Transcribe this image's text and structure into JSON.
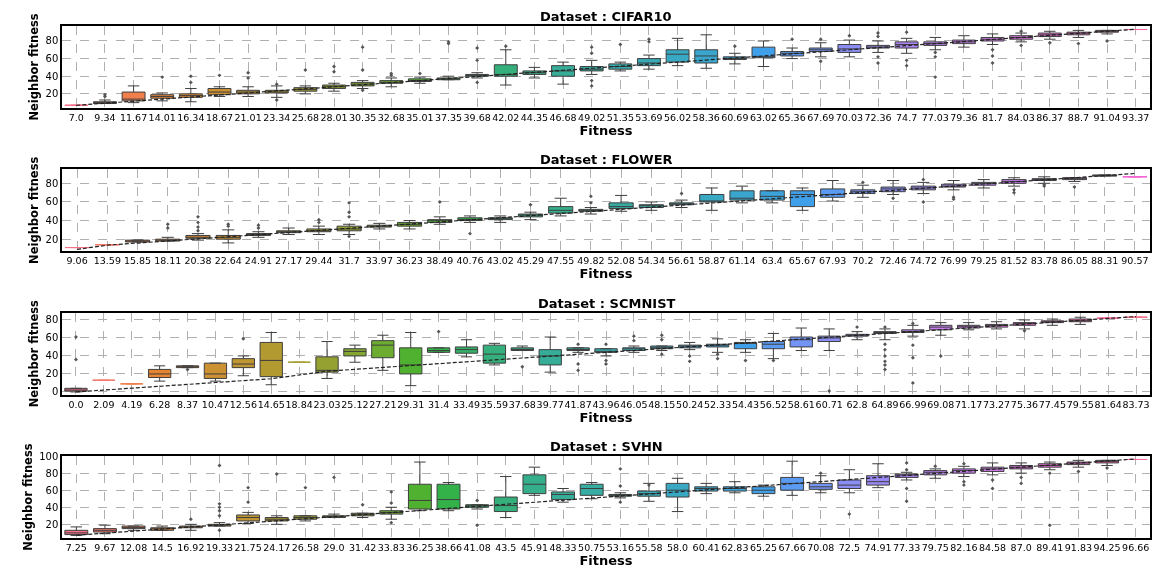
{
  "chart_data": [
    {
      "type": "box",
      "title": "Dataset : CIFAR10",
      "xlabel": "Fitness",
      "ylabel": "Neighbor fitness",
      "grid": true,
      "ylim": [
        4,
        97
      ],
      "yticks": [
        20,
        40,
        60,
        80
      ],
      "categories": [
        "7.0",
        "9.34",
        "11.67",
        "14.01",
        "16.34",
        "18.67",
        "21.01",
        "23.34",
        "25.68",
        "28.01",
        "30.35",
        "32.68",
        "35.01",
        "37.35",
        "39.68",
        "42.02",
        "44.35",
        "46.68",
        "49.02",
        "51.35",
        "53.69",
        "56.02",
        "58.36",
        "60.69",
        "63.02",
        "65.36",
        "67.69",
        "70.03",
        "72.36",
        "74.7",
        "77.03",
        "79.36",
        "81.7",
        "84.03",
        "86.37",
        "88.7",
        "91.04",
        "93.37"
      ],
      "colors": [
        "#f77189",
        "#f57a6b",
        "#ef7f4c",
        "#e68432",
        "#d98b32",
        "#cc9132",
        "#bf9632",
        "#b29a31",
        "#a49e31",
        "#95a231",
        "#83a731",
        "#6cac31",
        "#50b131",
        "#33b24a",
        "#34b067",
        "#35af7b",
        "#35ae8b",
        "#36ad98",
        "#36aca3",
        "#37abad",
        "#38aab7",
        "#39a8c2",
        "#3aa6cd",
        "#3ba3da",
        "#3f9fe8",
        "#5a9af0",
        "#7394f4",
        "#8a8ef4",
        "#9c88f4",
        "#ad84f4",
        "#bb83f4",
        "#c97ef3",
        "#d57af0",
        "#e173e6",
        "#ec6bda",
        "#f564d4",
        "#f668b8",
        "#f76ca0"
      ],
      "boxes": [
        {
          "low": 7,
          "q1": 7,
          "median": 7,
          "q3": 7,
          "high": 7
        },
        {
          "low": 9,
          "q1": 9,
          "median": 10,
          "q3": 11,
          "high": 13,
          "outliers": [
            17,
            19
          ]
        },
        {
          "low": 10,
          "q1": 12,
          "median": 14,
          "q3": 22,
          "high": 29
        },
        {
          "low": 12,
          "q1": 15,
          "median": 17,
          "q3": 19,
          "high": 21,
          "outliers": [
            39
          ]
        },
        {
          "low": 11,
          "q1": 16,
          "median": 18,
          "q3": 20,
          "high": 26,
          "outliers": [
            33,
            40
          ]
        },
        {
          "low": 17,
          "q1": 19,
          "median": 22,
          "q3": 26,
          "high": 28,
          "outliers": [
            41
          ]
        },
        {
          "low": 17,
          "q1": 20,
          "median": 22,
          "q3": 24,
          "high": 28,
          "outliers": [
            38,
            44
          ]
        },
        {
          "low": 16,
          "q1": 21,
          "median": 22,
          "q3": 24,
          "high": 29,
          "outliers": [
            13,
            31
          ]
        },
        {
          "low": 20,
          "q1": 23,
          "median": 25,
          "q3": 27,
          "high": 29,
          "outliers": [
            47
          ]
        },
        {
          "low": 23,
          "q1": 26,
          "median": 28,
          "q3": 30,
          "high": 32,
          "outliers": [
            45,
            51
          ]
        },
        {
          "low": 26,
          "q1": 29,
          "median": 31,
          "q3": 33,
          "high": 35,
          "outliers": [
            24,
            47,
            73
          ]
        },
        {
          "low": 28,
          "q1": 32,
          "median": 33,
          "q3": 35,
          "high": 38,
          "outliers": [
            41,
            43
          ]
        },
        {
          "low": 32,
          "q1": 34,
          "median": 35,
          "q3": 37,
          "high": 39,
          "outliers": [
            43
          ]
        },
        {
          "low": 36,
          "q1": 36,
          "median": 37,
          "q3": 38,
          "high": 40,
          "outliers": [
            77,
            79
          ]
        },
        {
          "low": 38,
          "q1": 40,
          "median": 41,
          "q3": 42,
          "high": 44,
          "outliers": [
            33,
            58,
            72
          ]
        },
        {
          "low": 30,
          "q1": 40,
          "median": 42,
          "q3": 53,
          "high": 70,
          "outliers": [
            74
          ]
        },
        {
          "low": 38,
          "q1": 42,
          "median": 44,
          "q3": 46,
          "high": 50
        },
        {
          "low": 31,
          "q1": 40,
          "median": 46,
          "q3": 52,
          "high": 56
        },
        {
          "low": 42,
          "q1": 46,
          "median": 48,
          "q3": 51,
          "high": 58,
          "outliers": [
            29,
            35,
            66,
            73
          ]
        },
        {
          "low": 46,
          "q1": 48,
          "median": 51,
          "q3": 54,
          "high": 56,
          "outliers": [
            76
          ]
        },
        {
          "low": 48,
          "q1": 52,
          "median": 55,
          "q3": 60,
          "high": 64,
          "outliers": [
            79,
            82
          ]
        },
        {
          "low": 52,
          "q1": 56,
          "median": 65,
          "q3": 70,
          "high": 83
        },
        {
          "low": 49,
          "q1": 55,
          "median": 63,
          "q3": 70,
          "high": 87
        },
        {
          "low": 54,
          "q1": 59,
          "median": 60,
          "q3": 62,
          "high": 66,
          "outliers": [
            74
          ]
        },
        {
          "low": 51,
          "q1": 61,
          "median": 62,
          "q3": 73,
          "high": 80
        },
        {
          "low": 60,
          "q1": 63,
          "median": 66,
          "q3": 68,
          "high": 72,
          "outliers": [
            82
          ]
        },
        {
          "low": 62,
          "q1": 68,
          "median": 70,
          "q3": 72,
          "high": 78,
          "outliers": [
            57,
            82
          ]
        },
        {
          "low": 62,
          "q1": 67,
          "median": 71,
          "q3": 76,
          "high": 81,
          "outliers": [
            86
          ]
        },
        {
          "low": 67,
          "q1": 72,
          "median": 73,
          "q3": 75,
          "high": 80,
          "outliers": [
            55,
            62,
            85,
            89
          ]
        },
        {
          "low": 66,
          "q1": 72,
          "median": 76,
          "q3": 79,
          "high": 83,
          "outliers": [
            52,
            58,
            90
          ]
        },
        {
          "low": 70,
          "q1": 75,
          "median": 77,
          "q3": 79,
          "high": 84,
          "outliers": [
            39,
            62,
            67
          ]
        },
        {
          "low": 73,
          "q1": 77,
          "median": 79,
          "q3": 81,
          "high": 86
        },
        {
          "low": 76,
          "q1": 80,
          "median": 82,
          "q3": 84,
          "high": 88,
          "outliers": [
            55,
            63,
            70
          ]
        },
        {
          "low": 79,
          "q1": 82,
          "median": 84,
          "q3": 86,
          "high": 89,
          "outliers": [
            75,
            91
          ]
        },
        {
          "low": 82,
          "q1": 85,
          "median": 87,
          "q3": 89,
          "high": 91,
          "outliers": [
            78
          ]
        },
        {
          "low": 84,
          "q1": 87,
          "median": 89,
          "q3": 90,
          "high": 92,
          "outliers": [
            77
          ]
        },
        {
          "low": 88,
          "q1": 90,
          "median": 91,
          "q3": 92,
          "high": 92,
          "outliers": [
            80
          ]
        },
        {
          "low": 93,
          "q1": 93,
          "median": 93,
          "q3": 93,
          "high": 93
        }
      ],
      "series": [
        {
          "type": "line",
          "color": "#222222",
          "line_style": "dashed",
          "values": [
            7.0,
            9.34,
            11.67,
            14.01,
            16.34,
            18.67,
            21.01,
            23.34,
            25.68,
            28.01,
            30.35,
            32.68,
            35.01,
            37.35,
            39.68,
            42.02,
            44.35,
            46.68,
            49.02,
            51.35,
            53.69,
            56.02,
            58.36,
            60.69,
            63.02,
            65.36,
            67.69,
            70.03,
            72.36,
            74.7,
            77.03,
            79.36,
            81.7,
            84.03,
            86.37,
            88.7,
            91.04,
            93.37
          ]
        }
      ]
    },
    {
      "type": "box",
      "title": "Dataset : FLOWER",
      "xlabel": "Fitness",
      "ylabel": "Neighbor fitness",
      "grid": true,
      "ylim": [
        7,
        95
      ],
      "yticks": [
        20,
        40,
        60,
        80
      ],
      "categories": [
        "9.06",
        "13.59",
        "15.85",
        "18.11",
        "20.38",
        "22.64",
        "24.91",
        "27.17",
        "29.44",
        "31.7",
        "33.97",
        "36.23",
        "38.49",
        "40.76",
        "43.02",
        "45.29",
        "47.55",
        "49.82",
        "52.08",
        "54.34",
        "56.61",
        "58.87",
        "61.14",
        "63.4",
        "65.67",
        "67.93",
        "70.2",
        "72.46",
        "74.72",
        "76.99",
        "79.25",
        "81.52",
        "83.78",
        "86.05",
        "88.31",
        "90.57"
      ],
      "colors": [
        "#f77189",
        "#f57a6b",
        "#ef7f4c",
        "#e68432",
        "#d98b32",
        "#cc9132",
        "#bf9632",
        "#b29a31",
        "#a49e31",
        "#95a231",
        "#83a731",
        "#6cac31",
        "#50b131",
        "#33b24a",
        "#34b067",
        "#35af7b",
        "#35ae8b",
        "#36ad98",
        "#36aca3",
        "#37abad",
        "#38aab7",
        "#39a8c2",
        "#3aa6cd",
        "#3ba3da",
        "#3f9fe8",
        "#5a9af0",
        "#7394f4",
        "#8a8ef4",
        "#9c88f4",
        "#ad84f4",
        "#bb83f4",
        "#c97ef3",
        "#d57af0",
        "#e173e6",
        "#ec6bda",
        "#f564d4"
      ],
      "boxes": [
        {
          "low": 11,
          "q1": 11,
          "median": 11,
          "q3": 11,
          "high": 11
        },
        {
          "low": 14,
          "q1": 14,
          "median": 14,
          "q3": 14,
          "high": 14
        },
        {
          "low": 17,
          "q1": 17,
          "median": 18,
          "q3": 19,
          "high": 19
        },
        {
          "low": 18,
          "q1": 18,
          "median": 19,
          "q3": 20,
          "high": 22,
          "outliers": [
            32,
            36
          ]
        },
        {
          "low": 19,
          "q1": 21,
          "median": 22,
          "q3": 24,
          "high": 26,
          "outliers": [
            29,
            33,
            38,
            44
          ]
        },
        {
          "low": 16,
          "q1": 20,
          "median": 22,
          "q3": 24,
          "high": 30,
          "outliers": [
            34,
            36
          ]
        },
        {
          "low": 22,
          "q1": 24,
          "median": 25,
          "q3": 26,
          "high": 28,
          "outliers": [
            32,
            35
          ]
        },
        {
          "low": 25,
          "q1": 27,
          "median": 28,
          "q3": 29,
          "high": 32
        },
        {
          "low": 25,
          "q1": 28,
          "median": 29,
          "q3": 31,
          "high": 34,
          "outliers": [
            38,
            41
          ]
        },
        {
          "low": 25,
          "q1": 29,
          "median": 31,
          "q3": 34,
          "high": 36,
          "outliers": [
            23,
            44,
            49,
            59
          ]
        },
        {
          "low": 31,
          "q1": 33,
          "median": 34,
          "q3": 35,
          "high": 37
        },
        {
          "low": 31,
          "q1": 34,
          "median": 36,
          "q3": 38,
          "high": 40
        },
        {
          "low": 36,
          "q1": 38,
          "median": 40,
          "q3": 41,
          "high": 44,
          "outliers": [
            60
          ]
        },
        {
          "low": 38,
          "q1": 40,
          "median": 41,
          "q3": 43,
          "high": 45,
          "outliers": [
            26
          ]
        },
        {
          "low": 38,
          "q1": 41,
          "median": 42,
          "q3": 43,
          "high": 45
        },
        {
          "low": 41,
          "q1": 44,
          "median": 46,
          "q3": 47,
          "high": 49,
          "outliers": [
            57
          ]
        },
        {
          "low": 45,
          "q1": 48,
          "median": 51,
          "q3": 55,
          "high": 64
        },
        {
          "low": 47,
          "q1": 50,
          "median": 51,
          "q3": 52,
          "high": 54,
          "outliers": [
            59,
            66
          ]
        },
        {
          "low": 50,
          "q1": 53,
          "median": 55,
          "q3": 59,
          "high": 67
        },
        {
          "low": 51,
          "q1": 54,
          "median": 56,
          "q3": 57,
          "high": 60
        },
        {
          "low": 54,
          "q1": 57,
          "median": 58,
          "q3": 59,
          "high": 62,
          "outliers": [
            69
          ]
        },
        {
          "low": 51,
          "q1": 60,
          "median": 61,
          "q3": 68,
          "high": 75
        },
        {
          "low": 59,
          "q1": 62,
          "median": 64,
          "q3": 72,
          "high": 77
        },
        {
          "low": 59,
          "q1": 62,
          "median": 66,
          "q3": 72,
          "high": 72
        },
        {
          "low": 51,
          "q1": 55,
          "median": 68,
          "q3": 72,
          "high": 75
        },
        {
          "low": 61,
          "q1": 65,
          "median": 68,
          "q3": 74,
          "high": 83
        },
        {
          "low": 65,
          "q1": 69,
          "median": 71,
          "q3": 73,
          "high": 78,
          "outliers": [
            81
          ]
        },
        {
          "low": 68,
          "q1": 71,
          "median": 74,
          "q3": 76,
          "high": 83,
          "outliers": [
            64
          ]
        },
        {
          "low": 69,
          "q1": 73,
          "median": 75,
          "q3": 77,
          "high": 81,
          "outliers": [
            60,
            84
          ]
        },
        {
          "low": 73,
          "q1": 76,
          "median": 77,
          "q3": 79,
          "high": 83,
          "outliers": [
            63,
            65
          ]
        },
        {
          "low": 75,
          "q1": 78,
          "median": 80,
          "q3": 81,
          "high": 84
        },
        {
          "low": 77,
          "q1": 80,
          "median": 82,
          "q3": 84,
          "high": 86,
          "outliers": [
            70,
            73
          ]
        },
        {
          "low": 80,
          "q1": 83,
          "median": 84,
          "q3": 85,
          "high": 87,
          "outliers": [
            77,
            79
          ]
        },
        {
          "low": 82,
          "q1": 84,
          "median": 85,
          "q3": 86,
          "high": 86,
          "outliers": [
            76
          ]
        },
        {
          "low": 88,
          "q1": 88,
          "median": 88,
          "q3": 89,
          "high": 89
        },
        {
          "low": 87,
          "q1": 87,
          "median": 87,
          "q3": 87,
          "high": 87
        }
      ],
      "series": [
        {
          "type": "line",
          "color": "#222222",
          "line_style": "dashed",
          "values": [
            9.06,
            13.59,
            15.85,
            18.11,
            20.38,
            22.64,
            24.91,
            27.17,
            29.44,
            31.7,
            33.97,
            36.23,
            38.49,
            40.76,
            43.02,
            45.29,
            47.55,
            49.82,
            52.08,
            54.34,
            56.61,
            58.87,
            61.14,
            63.4,
            65.67,
            67.93,
            70.2,
            72.46,
            74.72,
            76.99,
            79.25,
            81.52,
            83.78,
            86.05,
            88.31,
            90.57
          ]
        }
      ]
    },
    {
      "type": "box",
      "title": "Dataset : SCMNIST",
      "xlabel": "Fitness",
      "ylabel": "Neighbor fitness",
      "grid": true,
      "ylim": [
        -3,
        88
      ],
      "yticks": [
        0,
        20,
        40,
        60,
        80
      ],
      "categories": [
        "0.0",
        "2.09",
        "4.19",
        "6.28",
        "8.37",
        "10.47",
        "12.56",
        "14.65",
        "18.84",
        "23.03",
        "25.12",
        "27.21",
        "29.31",
        "31.4",
        "33.49",
        "35.59",
        "37.68",
        "39.77",
        "41.87",
        "43.96",
        "46.05",
        "48.15",
        "50.24",
        "52.33",
        "54.43",
        "56.52",
        "58.61",
        "60.71",
        "62.8",
        "64.89",
        "66.99",
        "69.08",
        "71.17",
        "73.27",
        "75.36",
        "77.45",
        "79.55",
        "81.64",
        "83.73"
      ],
      "colors": [
        "#f77189",
        "#f57a6b",
        "#ef7f4c",
        "#e68432",
        "#d98b32",
        "#cc9132",
        "#bf9632",
        "#b29a31",
        "#a49e31",
        "#95a231",
        "#83a731",
        "#6cac31",
        "#50b131",
        "#33b24a",
        "#34b067",
        "#35af7b",
        "#35ae8b",
        "#36ad98",
        "#36aca3",
        "#37abad",
        "#38aab7",
        "#39a8c2",
        "#3aa6cd",
        "#3ba3da",
        "#3f9fe8",
        "#5a9af0",
        "#7394f4",
        "#8a8ef4",
        "#9c88f4",
        "#ad84f4",
        "#bb83f4",
        "#c97ef3",
        "#d57af0",
        "#e173e6",
        "#ec6bda",
        "#f564d4",
        "#f668b8",
        "#f76ca0",
        "#f77189"
      ],
      "boxes": [
        {
          "low": 0,
          "q1": 1,
          "median": 2,
          "q3": 4,
          "high": 4,
          "outliers": [
            36,
            61
          ]
        },
        {
          "low": 13,
          "q1": 13,
          "median": 13,
          "q3": 13,
          "high": 13
        },
        {
          "low": 9,
          "q1": 9,
          "median": 9,
          "q3": 9,
          "high": 9
        },
        {
          "low": 12,
          "q1": 16,
          "median": 20,
          "q3": 25,
          "high": 29
        },
        {
          "low": 27,
          "q1": 27,
          "median": 28,
          "q3": 29,
          "high": 29,
          "outliers": [
            25
          ]
        },
        {
          "low": 12,
          "q1": 15,
          "median": 20,
          "q3": 32,
          "high": 32
        },
        {
          "low": 18,
          "q1": 27,
          "median": 31,
          "q3": 37,
          "high": 40,
          "outliers": [
            59
          ]
        },
        {
          "low": 8,
          "q1": 17,
          "median": 35,
          "q3": 55,
          "high": 66
        },
        {
          "low": 33,
          "q1": 33,
          "median": 33,
          "q3": 33,
          "high": 33
        },
        {
          "low": 15,
          "q1": 22,
          "median": 24,
          "q3": 39,
          "high": 56
        },
        {
          "low": 33,
          "q1": 40,
          "median": 45,
          "q3": 48,
          "high": 52
        },
        {
          "low": 24,
          "q1": 38,
          "median": 52,
          "q3": 57,
          "high": 63
        },
        {
          "low": 7,
          "q1": 20,
          "median": 30,
          "q3": 49,
          "high": 66
        },
        {
          "low": 44,
          "q1": 44,
          "median": 46,
          "q3": 49,
          "high": 49,
          "outliers": [
            67
          ]
        },
        {
          "low": 39,
          "q1": 43,
          "median": 47,
          "q3": 50,
          "high": 58
        },
        {
          "low": 30,
          "q1": 32,
          "median": 42,
          "q3": 52,
          "high": 54
        },
        {
          "low": 46,
          "q1": 46,
          "median": 47,
          "q3": 49,
          "high": 51,
          "outliers": [
            28
          ]
        },
        {
          "low": 22,
          "q1": 30,
          "median": 40,
          "q3": 47,
          "high": 61
        },
        {
          "low": 44,
          "q1": 46,
          "median": 47,
          "q3": 49,
          "high": 49,
          "outliers": [
            24,
            31,
            53
          ]
        },
        {
          "low": 40,
          "q1": 44,
          "median": 45,
          "q3": 48,
          "high": 48,
          "outliers": [
            31,
            35,
            53
          ]
        },
        {
          "low": 44,
          "q1": 46,
          "median": 48,
          "q3": 49,
          "high": 51,
          "outliers": [
            57,
            62
          ]
        },
        {
          "low": 46,
          "q1": 48,
          "median": 49,
          "q3": 51,
          "high": 51,
          "outliers": [
            42,
            58,
            63
          ]
        },
        {
          "low": 47,
          "q1": 49,
          "median": 51,
          "q3": 52,
          "high": 55,
          "outliers": [
            34,
            40
          ]
        },
        {
          "low": 44,
          "q1": 50,
          "median": 52,
          "q3": 53,
          "high": 59,
          "outliers": [
            37,
            42
          ]
        },
        {
          "low": 44,
          "q1": 48,
          "median": 54,
          "q3": 55,
          "high": 58,
          "outliers": [
            35
          ]
        },
        {
          "low": 37,
          "q1": 48,
          "median": 53,
          "q3": 56,
          "high": 65,
          "outliers": [
            35
          ]
        },
        {
          "low": 46,
          "q1": 50,
          "median": 58,
          "q3": 61,
          "high": 71
        },
        {
          "low": 46,
          "q1": 56,
          "median": 60,
          "q3": 62,
          "high": 70,
          "outliers": [
            1
          ]
        },
        {
          "low": 58,
          "q1": 62,
          "median": 63,
          "q3": 64,
          "high": 67,
          "outliers": [
            72
          ]
        },
        {
          "low": 58,
          "q1": 65,
          "median": 66,
          "q3": 67,
          "high": 70,
          "outliers": [
            25,
            30,
            34,
            40,
            47,
            53,
            72
          ]
        },
        {
          "low": 62,
          "q1": 66,
          "median": 67,
          "q3": 69,
          "high": 74,
          "outliers": [
            10,
            38,
            52,
            76
          ]
        },
        {
          "low": 63,
          "q1": 69,
          "median": 72,
          "q3": 74,
          "high": 77,
          "outliers": [
            40
          ]
        },
        {
          "low": 69,
          "q1": 71,
          "median": 73,
          "q3": 74,
          "high": 77
        },
        {
          "low": 70,
          "q1": 72,
          "median": 74,
          "q3": 75,
          "high": 78
        },
        {
          "low": 70,
          "q1": 74,
          "median": 76,
          "q3": 77,
          "high": 80,
          "outliers": [
            68
          ]
        },
        {
          "low": 74,
          "q1": 77,
          "median": 78,
          "q3": 79,
          "high": 81
        },
        {
          "low": 75,
          "q1": 78,
          "median": 79,
          "q3": 81,
          "high": 83
        },
        {
          "low": 82,
          "q1": 82,
          "median": 82,
          "q3": 82,
          "high": 82
        },
        {
          "low": 83,
          "q1": 83,
          "median": 83,
          "q3": 83,
          "high": 83
        }
      ],
      "series": [
        {
          "type": "line",
          "color": "#222222",
          "line_style": "dashed",
          "values": [
            0.0,
            2.09,
            4.19,
            6.28,
            8.37,
            10.47,
            12.56,
            14.65,
            18.84,
            23.03,
            25.12,
            27.21,
            29.31,
            31.4,
            33.49,
            35.59,
            37.68,
            39.77,
            41.87,
            43.96,
            46.05,
            48.15,
            50.24,
            52.33,
            54.43,
            56.52,
            58.61,
            60.71,
            62.8,
            64.89,
            66.99,
            69.08,
            71.17,
            73.27,
            75.36,
            77.45,
            79.55,
            81.64,
            83.73
          ]
        }
      ]
    },
    {
      "type": "box",
      "title": "Dataset : SVHN",
      "xlabel": "Fitness",
      "ylabel": "Neighbor fitness",
      "grid": true,
      "ylim": [
        4,
        100
      ],
      "yticks": [
        20,
        40,
        60,
        80,
        100
      ],
      "categories": [
        "7.25",
        "9.67",
        "12.08",
        "14.5",
        "16.92",
        "19.33",
        "21.75",
        "24.17",
        "26.58",
        "29.0",
        "31.42",
        "33.83",
        "36.25",
        "38.66",
        "41.08",
        "43.5",
        "45.91",
        "48.33",
        "50.75",
        "53.16",
        "55.58",
        "58.0",
        "60.41",
        "62.83",
        "65.25",
        "67.66",
        "70.08",
        "72.5",
        "74.91",
        "77.33",
        "79.75",
        "82.16",
        "84.58",
        "87.0",
        "89.41",
        "91.83",
        "94.25",
        "96.66"
      ],
      "colors": [
        "#f77189",
        "#f57a6b",
        "#ef7f4c",
        "#e68432",
        "#d98b32",
        "#cc9132",
        "#bf9632",
        "#b29a31",
        "#a49e31",
        "#95a231",
        "#83a731",
        "#6cac31",
        "#50b131",
        "#33b24a",
        "#34b067",
        "#35af7b",
        "#35ae8b",
        "#36ad98",
        "#36aca3",
        "#37abad",
        "#38aab7",
        "#39a8c2",
        "#3aa6cd",
        "#3ba3da",
        "#3f9fe8",
        "#5a9af0",
        "#7394f4",
        "#8a8ef4",
        "#9c88f4",
        "#ad84f4",
        "#bb83f4",
        "#c97ef3",
        "#d57af0",
        "#e173e6",
        "#ec6bda",
        "#f564d4",
        "#f668b8",
        "#f76ca0"
      ],
      "boxes": [
        {
          "low": 7,
          "q1": 8,
          "median": 10,
          "q3": 13,
          "high": 17
        },
        {
          "low": 9,
          "q1": 11,
          "median": 13,
          "q3": 15,
          "high": 19
        },
        {
          "low": 13,
          "q1": 15,
          "median": 16,
          "q3": 18,
          "high": 18
        },
        {
          "low": 13,
          "q1": 13,
          "median": 15,
          "q3": 16,
          "high": 18
        },
        {
          "low": 13,
          "q1": 16,
          "median": 17,
          "q3": 18,
          "high": 20,
          "outliers": [
            26
          ]
        },
        {
          "low": 18,
          "q1": 18,
          "median": 19,
          "q3": 20,
          "high": 22,
          "outliers": [
            13,
            30,
            36,
            40,
            44,
            89
          ]
        },
        {
          "low": 21,
          "q1": 24,
          "median": 28,
          "q3": 31,
          "high": 34,
          "outliers": [
            46,
            63
          ]
        },
        {
          "low": 20,
          "q1": 24,
          "median": 26,
          "q3": 28,
          "high": 30,
          "outliers": [
            79
          ]
        },
        {
          "low": 24,
          "q1": 26,
          "median": 28,
          "q3": 30,
          "high": 30,
          "outliers": [
            63
          ]
        },
        {
          "low": 28,
          "q1": 28,
          "median": 29,
          "q3": 30,
          "high": 32,
          "outliers": [
            75
          ]
        },
        {
          "low": 28,
          "q1": 30,
          "median": 32,
          "q3": 33,
          "high": 33,
          "outliers": [
            43
          ]
        },
        {
          "low": 26,
          "q1": 32,
          "median": 34,
          "q3": 36,
          "high": 40,
          "outliers": [
            22,
            45,
            58
          ]
        },
        {
          "low": 36,
          "q1": 38,
          "median": 48,
          "q3": 67,
          "high": 93
        },
        {
          "low": 36,
          "q1": 38,
          "median": 49,
          "q3": 67,
          "high": 69
        },
        {
          "low": 38,
          "q1": 40,
          "median": 42,
          "q3": 43,
          "high": 43,
          "outliers": [
            19,
            48
          ]
        },
        {
          "low": 28,
          "q1": 35,
          "median": 42,
          "q3": 52,
          "high": 76
        },
        {
          "low": 54,
          "q1": 56,
          "median": 67,
          "q3": 78,
          "high": 87
        },
        {
          "low": 46,
          "q1": 49,
          "median": 55,
          "q3": 58,
          "high": 62
        },
        {
          "low": 50,
          "q1": 54,
          "median": 62,
          "q3": 67,
          "high": 69
        },
        {
          "low": 51,
          "q1": 53,
          "median": 54,
          "q3": 55,
          "high": 57,
          "outliers": [
            46,
            65,
            85
          ]
        },
        {
          "low": 47,
          "q1": 53,
          "median": 56,
          "q3": 59,
          "high": 68,
          "outliers": [
            66
          ]
        },
        {
          "low": 35,
          "q1": 52,
          "median": 60,
          "q3": 68,
          "high": 74
        },
        {
          "low": 56,
          "q1": 59,
          "median": 62,
          "q3": 64,
          "high": 68
        },
        {
          "low": 57,
          "q1": 59,
          "median": 62,
          "q3": 64,
          "high": 70
        },
        {
          "low": 53,
          "q1": 56,
          "median": 60,
          "q3": 64,
          "high": 66
        },
        {
          "low": 54,
          "q1": 60,
          "median": 68,
          "q3": 75,
          "high": 94
        },
        {
          "low": 57,
          "q1": 61,
          "median": 64,
          "q3": 68,
          "high": 77,
          "outliers": [
            80
          ]
        },
        {
          "low": 57,
          "q1": 62,
          "median": 66,
          "q3": 72,
          "high": 84,
          "outliers": [
            32
          ]
        },
        {
          "low": 63,
          "q1": 66,
          "median": 70,
          "q3": 77,
          "high": 91
        },
        {
          "low": 72,
          "q1": 75,
          "median": 78,
          "q3": 79,
          "high": 81,
          "outliers": [
            47,
            62,
            84,
            92
          ]
        },
        {
          "low": 74,
          "q1": 78,
          "median": 81,
          "q3": 83,
          "high": 85,
          "outliers": [
            88
          ]
        },
        {
          "low": 76,
          "q1": 80,
          "median": 83,
          "q3": 85,
          "high": 88,
          "outliers": [
            66,
            70,
            91
          ]
        },
        {
          "low": 78,
          "q1": 82,
          "median": 85,
          "q3": 87,
          "high": 92,
          "outliers": [
            62,
            72
          ]
        },
        {
          "low": 80,
          "q1": 85,
          "median": 87,
          "q3": 89,
          "high": 92,
          "outliers": [
            68,
            75
          ]
        },
        {
          "low": 84,
          "q1": 87,
          "median": 89,
          "q3": 91,
          "high": 93,
          "outliers": [
            19,
            80
          ]
        },
        {
          "low": 87,
          "q1": 90,
          "median": 92,
          "q3": 93,
          "high": 95,
          "outliers": [
            82
          ]
        },
        {
          "low": 89,
          "q1": 92,
          "median": 94,
          "q3": 95,
          "high": 95,
          "outliers": [
            86
          ]
        },
        {
          "low": 96,
          "q1": 96,
          "median": 96,
          "q3": 96,
          "high": 96
        }
      ],
      "series": [
        {
          "type": "line",
          "color": "#222222",
          "line_style": "dashed",
          "values": [
            7.25,
            9.67,
            12.08,
            14.5,
            16.92,
            19.33,
            21.75,
            24.17,
            26.58,
            29.0,
            31.42,
            33.83,
            36.25,
            38.66,
            41.08,
            43.5,
            45.91,
            48.33,
            50.75,
            53.16,
            55.58,
            58.0,
            60.41,
            62.83,
            65.25,
            67.66,
            70.08,
            72.5,
            74.91,
            77.33,
            79.75,
            82.16,
            84.58,
            87.0,
            89.41,
            91.83,
            94.25,
            96.66
          ]
        }
      ]
    }
  ]
}
